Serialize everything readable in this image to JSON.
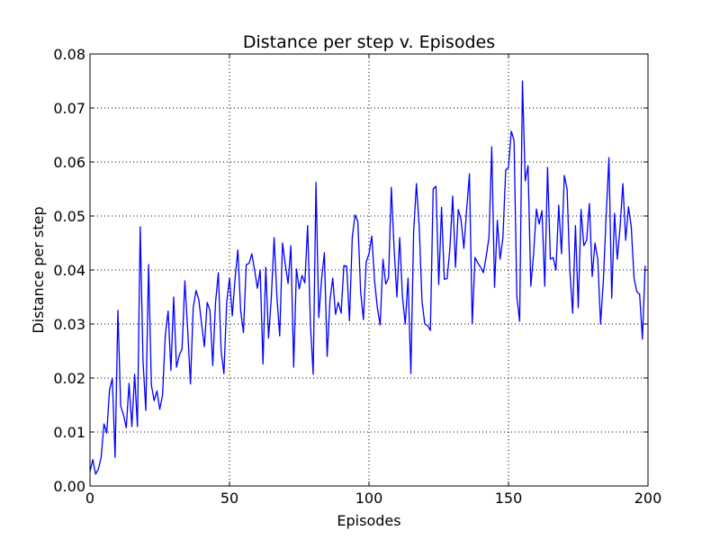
{
  "chart_data": {
    "type": "line",
    "title": "Distance per step v. Episodes",
    "xlabel": "Episodes",
    "ylabel": "Distance per step",
    "xlim": [
      0,
      200
    ],
    "ylim": [
      0,
      0.08
    ],
    "x_ticks": [
      "0",
      "50",
      "100",
      "150",
      "200"
    ],
    "y_ticks": [
      "0.00",
      "0.01",
      "0.02",
      "0.03",
      "0.04",
      "0.05",
      "0.06",
      "0.07",
      "0.08"
    ],
    "grid": true,
    "line_color": "#0000ff",
    "series": [
      {
        "x_start": 0,
        "x_step": 1,
        "values": [
          0.0027,
          0.0049,
          0.0022,
          0.0031,
          0.0053,
          0.0115,
          0.0098,
          0.0178,
          0.0199,
          0.0053,
          0.0325,
          0.0148,
          0.0132,
          0.0108,
          0.019,
          0.011,
          0.0207,
          0.011,
          0.048,
          0.0232,
          0.014,
          0.041,
          0.0187,
          0.0158,
          0.0176,
          0.0142,
          0.0168,
          0.028,
          0.0324,
          0.0214,
          0.035,
          0.022,
          0.0242,
          0.0254,
          0.038,
          0.029,
          0.0189,
          0.033,
          0.0362,
          0.0345,
          0.03,
          0.0258,
          0.034,
          0.0325,
          0.0223,
          0.034,
          0.0395,
          0.025,
          0.0208,
          0.034,
          0.0385,
          0.0315,
          0.0385,
          0.0437,
          0.0325,
          0.0284,
          0.041,
          0.0412,
          0.043,
          0.04,
          0.0366,
          0.04,
          0.0226,
          0.0405,
          0.0274,
          0.035,
          0.046,
          0.035,
          0.0278,
          0.045,
          0.041,
          0.0375,
          0.0445,
          0.022,
          0.0402,
          0.0365,
          0.039,
          0.0376,
          0.0482,
          0.03,
          0.0207,
          0.0562,
          0.0312,
          0.0382,
          0.0432,
          0.024,
          0.0343,
          0.0385,
          0.0318,
          0.034,
          0.032,
          0.0408,
          0.0407,
          0.0306,
          0.046,
          0.0502,
          0.049,
          0.036,
          0.0308,
          0.0415,
          0.043,
          0.0463,
          0.038,
          0.033,
          0.0298,
          0.042,
          0.0374,
          0.0385,
          0.0553,
          0.044,
          0.035,
          0.046,
          0.035,
          0.03,
          0.0385,
          0.0208,
          0.047,
          0.056,
          0.048,
          0.0342,
          0.03,
          0.0297,
          0.0288,
          0.055,
          0.0555,
          0.0373,
          0.0516,
          0.0383,
          0.0384,
          0.044,
          0.0537,
          0.0405,
          0.0512,
          0.0493,
          0.044,
          0.0512,
          0.0578,
          0.03,
          0.0423,
          0.0413,
          0.0405,
          0.0395,
          0.0425,
          0.046,
          0.0628,
          0.0368,
          0.0492,
          0.042,
          0.046,
          0.0585,
          0.059,
          0.0657,
          0.064,
          0.035,
          0.0305,
          0.075,
          0.0565,
          0.0593,
          0.037,
          0.043,
          0.0513,
          0.0485,
          0.051,
          0.037,
          0.059,
          0.042,
          0.0423,
          0.04,
          0.052,
          0.043,
          0.0575,
          0.055,
          0.0398,
          0.032,
          0.0482,
          0.033,
          0.0512,
          0.0445,
          0.0455,
          0.0523,
          0.0388,
          0.045,
          0.042,
          0.03,
          0.038,
          0.05,
          0.0608,
          0.0348,
          0.0505,
          0.042,
          0.048,
          0.056,
          0.0455,
          0.0517,
          0.048,
          0.0385,
          0.036,
          0.0355,
          0.0272,
          0.0408
        ]
      }
    ]
  }
}
